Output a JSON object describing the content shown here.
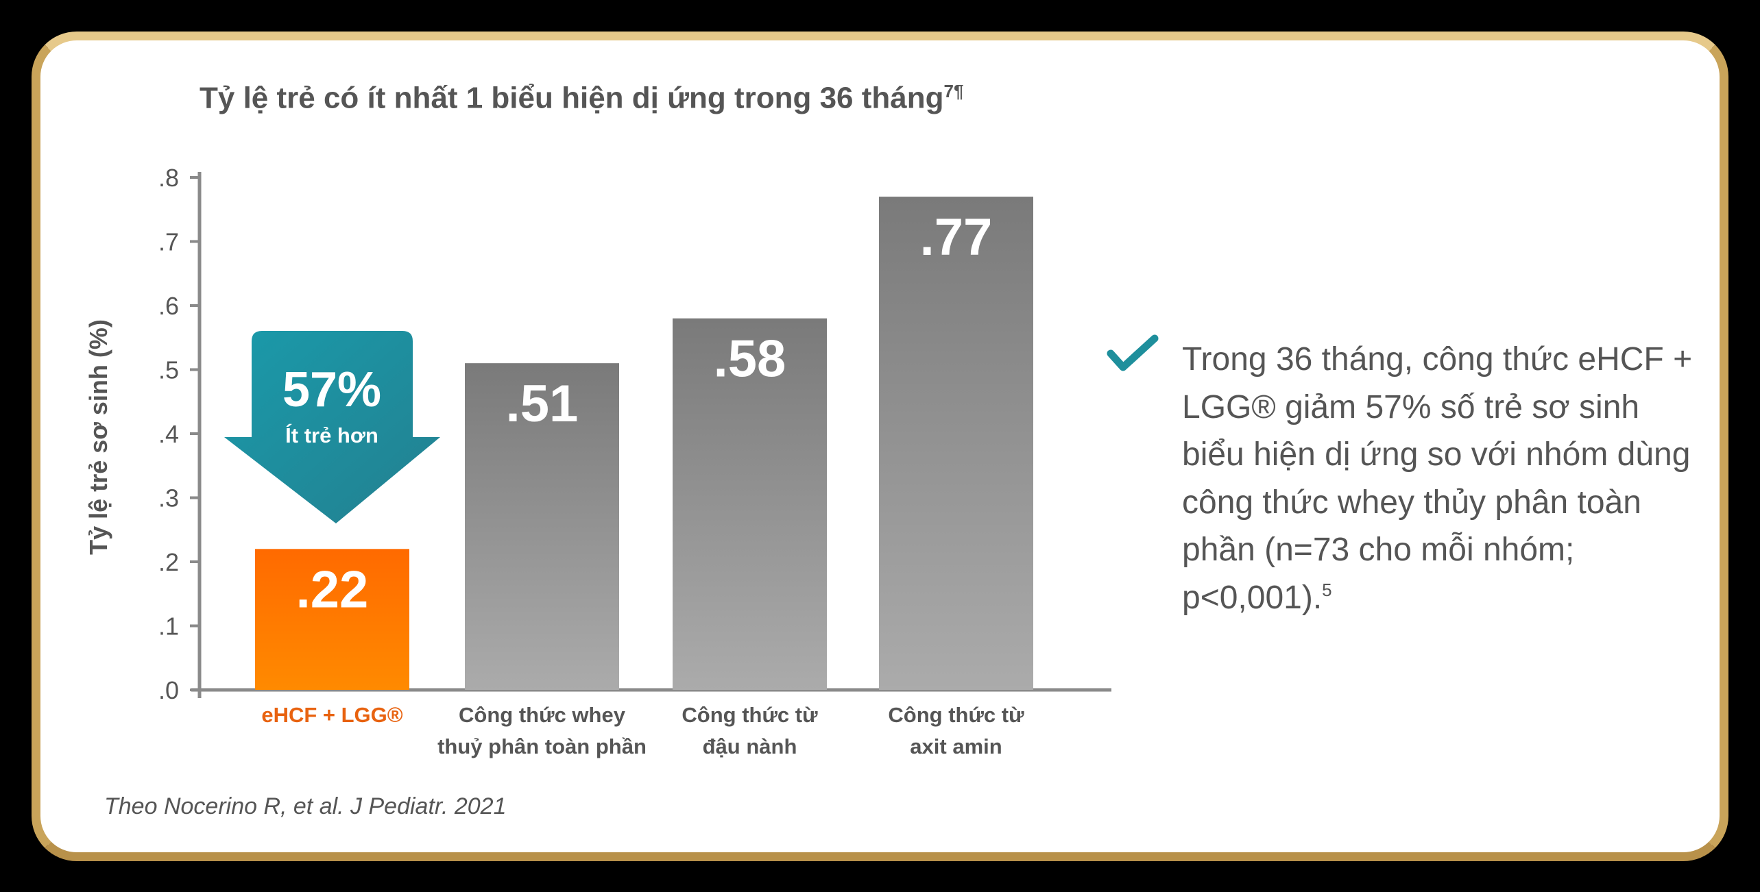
{
  "chart_data": {
    "type": "bar",
    "title": "Tỷ lệ trẻ có ít nhất 1 biểu hiện dị ứng trong 36 tháng",
    "title_superscript": "7¶",
    "ylabel": "Tỷ lệ trẻ sơ sinh (%)",
    "xlabel": "",
    "ylim": [
      0,
      0.8
    ],
    "yticks": [
      ".0",
      ".1",
      ".2",
      ".3",
      ".4",
      ".5",
      ".6",
      ".7",
      ".8"
    ],
    "grid": false,
    "categories": [
      [
        "eHCF + LGG®"
      ],
      [
        "Công thức whey",
        "thuỷ phân toàn phần"
      ],
      [
        "Công thức từ",
        "đậu nành"
      ],
      [
        "Công thức từ",
        "axit amin"
      ]
    ],
    "values": [
      0.22,
      0.51,
      0.58,
      0.77
    ],
    "data_labels": [
      ".22",
      ".51",
      ".58",
      ".77"
    ],
    "bar_colors": [
      "#ff7a00",
      "#8a8a8a",
      "#8a8a8a",
      "#8a8a8a"
    ],
    "annotation": {
      "value": "57%",
      "text": "Ít trẻ hơn",
      "color": "#1e8f9c"
    }
  },
  "citation": "Theo Nocerino R, et al. J Pediatr. 2021",
  "note": {
    "icon": "check-icon",
    "text": "Trong 36 tháng, công thức eHCF + LGG® giảm 57% số trẻ sơ sinh biểu hiện dị ứng so với nhóm dùng công thức whey thủy phân toàn phần (n=73 cho mỗi nhóm; p<0,001).",
    "superscript": "5"
  },
  "colors": {
    "accent": "#1e8f9c",
    "highlight": "#ff7a00",
    "frame": "#c9a45a",
    "text": "#555555"
  }
}
